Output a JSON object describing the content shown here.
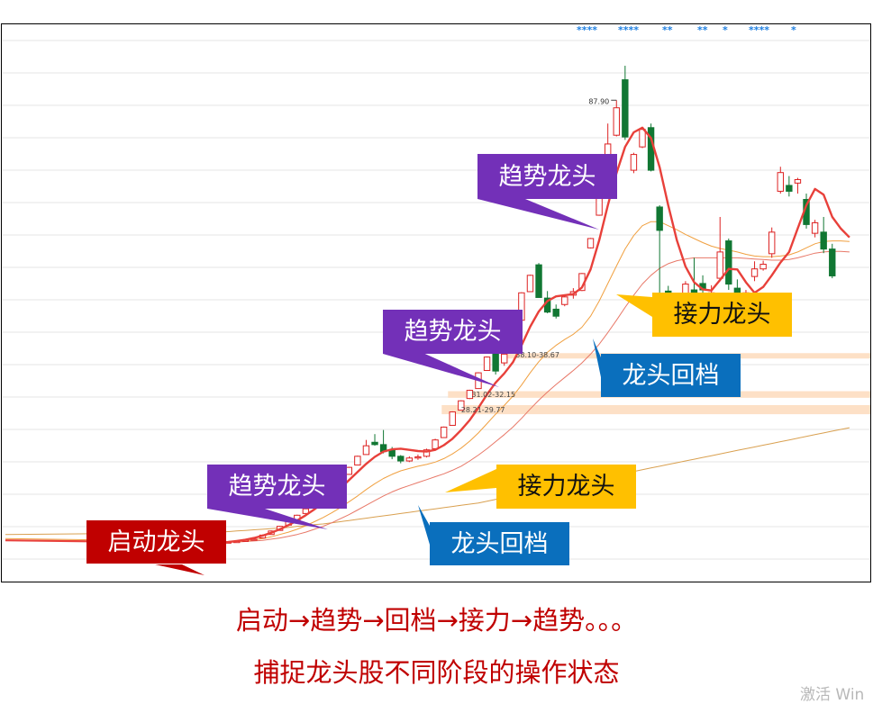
{
  "chart_data": {
    "type": "candlestick",
    "peak_label": "87.90",
    "stars": [
      "****",
      "****",
      "**",
      "**",
      "*",
      "****",
      "*"
    ],
    "zone_labels": [
      "38.10-38.67",
      "31.02-32.15",
      "28.21-29.77"
    ],
    "candles": [
      {
        "o": 6.1,
        "c": 6.1,
        "h": 6.1,
        "l": 6.1
      },
      {
        "o": 6.2,
        "c": 6.2,
        "h": 6.2,
        "l": 6.2
      },
      {
        "o": 6.2,
        "c": 6.3,
        "h": 6.3,
        "l": 6.2
      },
      {
        "o": 6.3,
        "c": 6.4,
        "h": 6.5,
        "l": 6.3
      },
      {
        "o": 6.6,
        "c": 6.6,
        "h": 6.8,
        "l": 6.4
      },
      {
        "o": 6.8,
        "c": 6.8,
        "h": 7.0,
        "l": 6.6
      },
      {
        "o": 7.0,
        "c": 7.5,
        "h": 7.6,
        "l": 7.0
      },
      {
        "o": 7.6,
        "c": 8.2,
        "h": 8.3,
        "l": 7.6
      },
      {
        "o": 8.3,
        "c": 9.0,
        "h": 9.1,
        "l": 8.3
      },
      {
        "o": 9.2,
        "c": 9.9,
        "h": 10.0,
        "l": 9.2
      },
      {
        "o": 10.1,
        "c": 10.9,
        "h": 11.0,
        "l": 10.1
      },
      {
        "o": 11.2,
        "c": 12.0,
        "h": 12.1,
        "l": 11.2
      },
      {
        "o": 12.3,
        "c": 13.2,
        "h": 13.3,
        "l": 12.3
      },
      {
        "o": 13.5,
        "c": 14.5,
        "h": 14.6,
        "l": 13.5
      },
      {
        "o": 15.0,
        "c": 16.0,
        "h": 16.1,
        "l": 15.0
      },
      {
        "o": 16.4,
        "c": 17.5,
        "h": 17.6,
        "l": 16.4
      },
      {
        "o": 17.9,
        "c": 19.1,
        "h": 19.2,
        "l": 17.9
      },
      {
        "o": 19.5,
        "c": 21.0,
        "h": 21.1,
        "l": 19.5
      },
      {
        "o": 21.3,
        "c": 22.8,
        "h": 23.8,
        "l": 21.3
      },
      {
        "o": 23.4,
        "c": 23.0,
        "h": 24.8,
        "l": 22.8
      },
      {
        "o": 23.0,
        "c": 21.8,
        "h": 25.5,
        "l": 21.5
      },
      {
        "o": 22.0,
        "c": 21.0,
        "h": 22.6,
        "l": 20.5
      },
      {
        "o": 21.0,
        "c": 20.2,
        "h": 21.2,
        "l": 19.8
      },
      {
        "o": 20.2,
        "c": 20.7,
        "h": 21.0,
        "l": 20.0
      },
      {
        "o": 20.7,
        "c": 20.9,
        "h": 21.3,
        "l": 20.4
      },
      {
        "o": 21.0,
        "c": 22.1,
        "h": 22.3,
        "l": 20.8
      },
      {
        "o": 22.3,
        "c": 23.8,
        "h": 24.0,
        "l": 22.2
      },
      {
        "o": 24.2,
        "c": 26.0,
        "h": 26.1,
        "l": 24.2
      },
      {
        "o": 26.3,
        "c": 28.6,
        "h": 28.7,
        "l": 26.3
      },
      {
        "o": 28.9,
        "c": 30.5,
        "h": 30.6,
        "l": 28.9
      },
      {
        "o": 30.9,
        "c": 32.3,
        "h": 32.4,
        "l": 30.8
      },
      {
        "o": 32.6,
        "c": 35.3,
        "h": 35.4,
        "l": 32.6
      },
      {
        "o": 35.7,
        "c": 38.0,
        "h": 38.1,
        "l": 35.7
      },
      {
        "o": 38.5,
        "c": 35.6,
        "h": 41.2,
        "l": 35.0
      },
      {
        "o": 37.0,
        "c": 38.5,
        "h": 39.5,
        "l": 36.5
      },
      {
        "o": 39.3,
        "c": 44.0,
        "h": 44.2,
        "l": 39.2
      },
      {
        "o": 44.3,
        "c": 49.0,
        "h": 49.1,
        "l": 44.3
      },
      {
        "o": 49.2,
        "c": 52.0,
        "h": 52.1,
        "l": 49.2
      },
      {
        "o": 53.8,
        "c": 48.2,
        "h": 54.1,
        "l": 48.2
      },
      {
        "o": 48.1,
        "c": 45.7,
        "h": 49.3,
        "l": 45.5
      },
      {
        "o": 46.2,
        "c": 45.0,
        "h": 47.0,
        "l": 44.6
      },
      {
        "o": 47.0,
        "c": 48.3,
        "h": 48.6,
        "l": 46.7
      },
      {
        "o": 48.6,
        "c": 49.2,
        "h": 49.8,
        "l": 48.0
      },
      {
        "o": 49.4,
        "c": 52.3,
        "h": 52.4,
        "l": 49.3
      },
      {
        "o": 56.7,
        "c": 58.3,
        "h": 58.4,
        "l": 56.6
      },
      {
        "o": 62.3,
        "c": 65.2,
        "h": 68.3,
        "l": 62.2
      },
      {
        "o": 71.0,
        "c": 74.5,
        "h": 78.0,
        "l": 70.8
      },
      {
        "o": 76.0,
        "c": 80.7,
        "h": 82.0,
        "l": 75.8
      },
      {
        "o": 85.5,
        "c": 75.7,
        "h": 87.9,
        "l": 75.2
      },
      {
        "o": 70.0,
        "c": 72.7,
        "h": 73.0,
        "l": 69.5
      },
      {
        "o": 74.0,
        "c": 77.0,
        "h": 77.1,
        "l": 73.8
      },
      {
        "o": 77.3,
        "c": 70.0,
        "h": 78.0,
        "l": 69.8
      },
      {
        "o": 63.7,
        "c": 59.7,
        "h": 64.0,
        "l": 48.3
      },
      {
        "o": 49.3,
        "c": 45.2,
        "h": 50.2,
        "l": 44.2
      },
      {
        "o": 47.9,
        "c": 46.6,
        "h": 48.3,
        "l": 45.5
      },
      {
        "o": 46.6,
        "c": 50.5,
        "h": 51.0,
        "l": 46.0
      },
      {
        "o": 49.5,
        "c": 46.7,
        "h": 55.0,
        "l": 46.2
      },
      {
        "o": 50.6,
        "c": 49.5,
        "h": 52.0,
        "l": 48.5
      },
      {
        "o": 47.9,
        "c": 49.0,
        "h": 50.3,
        "l": 47.3
      },
      {
        "o": 51.5,
        "c": 56.0,
        "h": 62.0,
        "l": 51.0
      },
      {
        "o": 57.9,
        "c": 50.5,
        "h": 58.3,
        "l": 49.5
      },
      {
        "o": 49.8,
        "c": 46.3,
        "h": 51.3,
        "l": 46.0
      },
      {
        "o": 45.2,
        "c": 49.0,
        "h": 49.5,
        "l": 44.8
      },
      {
        "o": 51.8,
        "c": 53.1,
        "h": 54.4,
        "l": 51.0
      },
      {
        "o": 53.1,
        "c": 53.9,
        "h": 54.5,
        "l": 52.8
      },
      {
        "o": 55.7,
        "c": 59.4,
        "h": 60.2,
        "l": 55.0
      },
      {
        "o": 66.4,
        "c": 69.6,
        "h": 70.6,
        "l": 66.0
      },
      {
        "o": 67.4,
        "c": 66.4,
        "h": 69.0,
        "l": 65.5
      },
      {
        "o": 67.8,
        "c": 68.4,
        "h": 68.7,
        "l": 66.0
      },
      {
        "o": 65.0,
        "c": 60.7,
        "h": 66.0,
        "l": 60.0
      },
      {
        "o": 59.2,
        "c": 61.0,
        "h": 61.5,
        "l": 58.5
      },
      {
        "o": 59.4,
        "c": 56.5,
        "h": 62.0,
        "l": 55.8
      },
      {
        "o": 56.5,
        "c": 51.9,
        "h": 57.4,
        "l": 51.5
      }
    ],
    "ma_primary": [
      6.3,
      6.2,
      6.3,
      6.5,
      6.7,
      7.0,
      7.4,
      7.9,
      8.5,
      9.2,
      10.0,
      10.9,
      11.9,
      13.0,
      14.2,
      15.5,
      16.9,
      18.3,
      19.7,
      20.9,
      21.8,
      22.2,
      22.3,
      22.1,
      21.9,
      21.8,
      22.1,
      22.9,
      24.0,
      25.5,
      27.2,
      29.3,
      31.6,
      33.6,
      35.2,
      37.1,
      40.0,
      43.2,
      45.8,
      47.6,
      48.4,
      48.6,
      48.8,
      49.9,
      53.0,
      58.0,
      64.0,
      69.5,
      74.0,
      76.5,
      77.3,
      75.5,
      70.5,
      64.0,
      58.0,
      53.5,
      50.8,
      49.6,
      49.4,
      51.2,
      53.1,
      53.0,
      50.8,
      49.0,
      50.0,
      52.0,
      54.2,
      56.0,
      60.0,
      64.0,
      66.8,
      65.8,
      62.0,
      60.0,
      58.5
    ],
    "ma_secondary": [
      6.3,
      6.3,
      6.3,
      6.4,
      6.5,
      6.7,
      6.9,
      7.2,
      7.6,
      8.0,
      8.5,
      9.1,
      9.8,
      10.5,
      11.3,
      12.2,
      13.2,
      14.2,
      15.3,
      16.3,
      17.2,
      17.9,
      18.5,
      18.9,
      19.3,
      19.6,
      20.0,
      20.6,
      21.4,
      22.4,
      23.6,
      25.0,
      26.6,
      28.2,
      29.7,
      31.3,
      33.2,
      35.3,
      37.2,
      38.8,
      40.0,
      41.0,
      41.9,
      43.1,
      45.0,
      47.6,
      50.6,
      53.6,
      56.5,
      58.8,
      60.5,
      61.2,
      61.2,
      60.5,
      59.8,
      59.0,
      58.3,
      57.6,
      57.0,
      56.6,
      56.3,
      56.0,
      55.6,
      55.3,
      55.2,
      55.2,
      55.3,
      55.5,
      56.0,
      56.7,
      57.4,
      57.8,
      57.9,
      57.9,
      57.8
    ],
    "ma_tertiary": [
      6.3,
      6.3,
      6.3,
      6.3,
      6.4,
      6.5,
      6.6,
      6.8,
      7.0,
      7.3,
      7.6,
      8.0,
      8.5,
      9.0,
      9.6,
      10.3,
      11.0,
      11.8,
      12.6,
      13.4,
      14.2,
      14.9,
      15.5,
      16.0,
      16.5,
      17.0,
      17.5,
      18.0,
      18.6,
      19.3,
      20.2,
      21.2,
      22.3,
      23.5,
      24.7,
      26.0,
      27.5,
      29.1,
      30.6,
      32.0,
      33.3,
      34.5,
      35.7,
      37.0,
      38.5,
      40.2,
      42.2,
      44.3,
      46.5,
      48.6,
      50.5,
      52.0,
      53.2,
      54.0,
      54.5,
      54.8,
      55.0,
      55.0,
      55.0,
      55.0,
      55.0,
      55.0,
      54.9,
      54.8,
      54.7,
      54.6,
      54.6,
      54.7,
      55.0,
      55.4,
      55.8,
      56.0,
      56.1,
      56.1,
      56.0
    ],
    "ma_long": [
      7.9,
      8.0,
      8.1,
      8.2,
      8.3,
      8.4,
      8.5,
      8.6,
      8.7,
      8.8,
      9.0,
      9.1,
      9.3,
      9.4,
      9.6,
      9.8,
      10.0,
      10.2,
      10.4,
      10.6,
      10.8,
      11.0,
      11.2,
      11.4,
      11.6,
      11.8,
      12.0,
      12.2,
      12.4,
      12.6,
      12.8,
      13.0,
      13.3,
      13.6,
      13.9,
      14.2,
      14.5,
      14.8,
      15.1,
      15.4,
      15.7,
      16.0,
      16.3,
      16.6,
      16.9,
      17.2,
      17.5,
      17.8,
      18.1,
      18.4,
      18.7,
      19.0,
      19.3,
      19.6,
      19.9,
      20.2,
      20.5,
      20.8,
      21.1,
      21.4,
      21.7,
      22.0,
      22.3,
      22.6,
      22.9,
      23.2,
      23.5,
      23.8,
      24.1,
      24.4,
      24.7,
      25.0,
      25.3,
      25.6,
      25.9
    ],
    "support_zones": [
      [
        38.1,
        38.67
      ],
      [
        31.02,
        32.15
      ],
      [
        28.21,
        29.77
      ]
    ],
    "y_range": [
      0,
      95
    ],
    "grid": true,
    "annotations": {
      "trend_leader": "趋势龙头",
      "relay_leader": "接力龙头",
      "leader_pullback": "龙头回档",
      "startup_leader": "启动龙头"
    }
  },
  "captions": {
    "line1": "启动→趋势→回档→接力→趋势。。。",
    "line2": "捕捉龙头股不同阶段的操作状态"
  },
  "watermark": "激活 Win",
  "colors": {
    "up": "#dd2222",
    "down": "#117733",
    "ma_primary": "#e8403a",
    "ma_secondary": "#f0a040",
    "ma_tertiary": "#e87868",
    "ma_long": "#d9a050",
    "zone": "#fde0c6",
    "stars": "#1e7fe0",
    "grid": "#e6e6e6"
  }
}
